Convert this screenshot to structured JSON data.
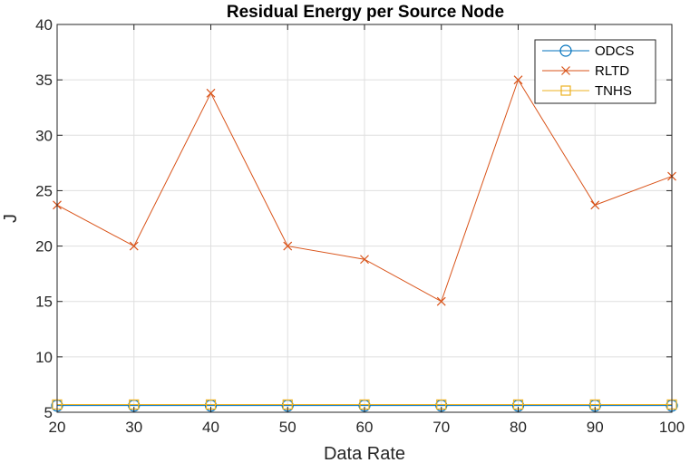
{
  "chart_data": {
    "type": "line",
    "title": "Residual Energy per Source Node",
    "xlabel": "Data Rate",
    "ylabel": "J",
    "x": [
      20,
      30,
      40,
      50,
      60,
      70,
      80,
      90,
      100
    ],
    "xlim": [
      20,
      100
    ],
    "ylim": [
      5,
      40
    ],
    "xticks": [
      "20",
      "30",
      "40",
      "50",
      "60",
      "70",
      "80",
      "90",
      "100"
    ],
    "yticks": [
      "5",
      "10",
      "15",
      "20",
      "25",
      "30",
      "35",
      "40"
    ],
    "grid": true,
    "legend_position": "top-right",
    "series": [
      {
        "name": "ODCS",
        "values": [
          5.6,
          5.6,
          5.6,
          5.6,
          5.6,
          5.6,
          5.6,
          5.6,
          5.6
        ],
        "color": "#0072bd",
        "marker": "circle"
      },
      {
        "name": "RLTD",
        "values": [
          23.7,
          20.0,
          33.8,
          20.0,
          18.8,
          15.0,
          35.0,
          23.7,
          26.3
        ],
        "color": "#d95319",
        "marker": "x"
      },
      {
        "name": "TNHS",
        "values": [
          5.7,
          5.7,
          5.7,
          5.7,
          5.7,
          5.7,
          5.7,
          5.7,
          5.7
        ],
        "color": "#edb120",
        "marker": "square"
      }
    ]
  }
}
